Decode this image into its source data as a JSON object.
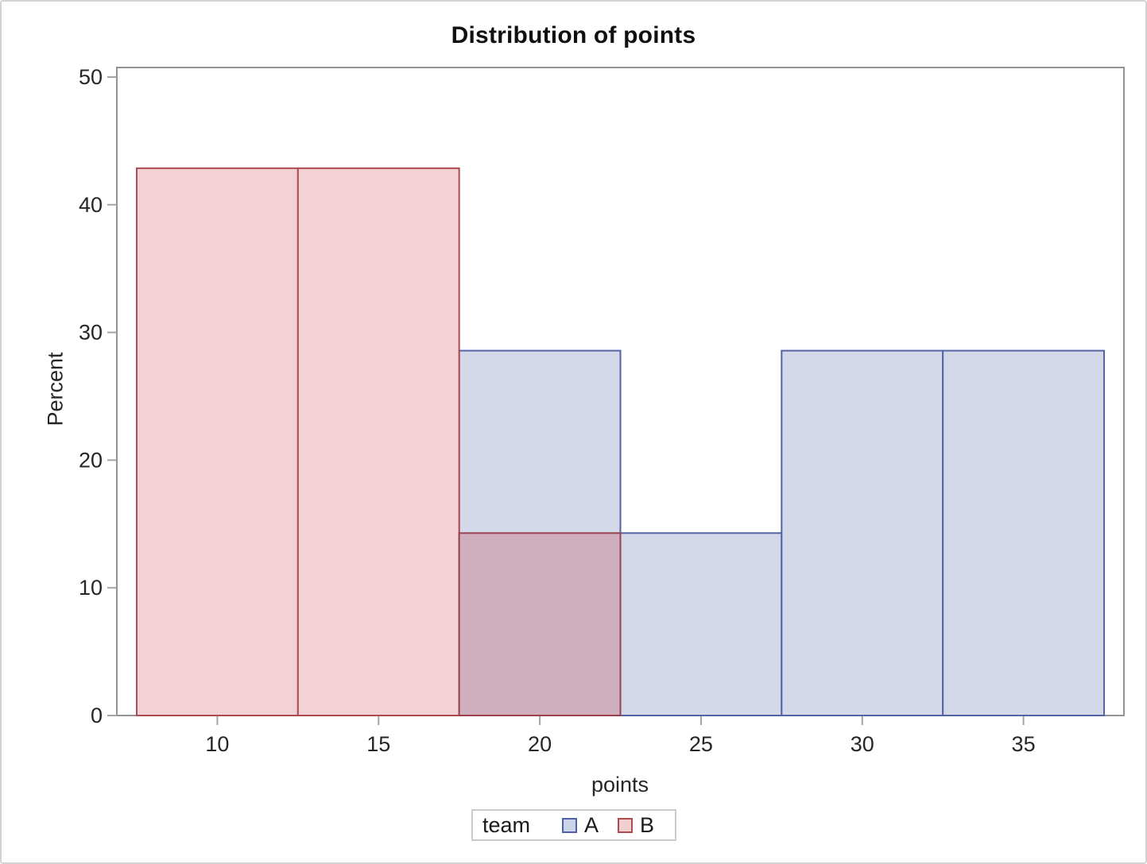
{
  "chart_data": {
    "type": "bar",
    "subtype": "overlaid_histogram",
    "title": "Distribution of points",
    "xlabel": "points",
    "ylabel": "Percent",
    "xticks": [
      10,
      15,
      20,
      25,
      30,
      35
    ],
    "yticks": [
      0,
      10,
      20,
      30,
      40,
      50
    ],
    "xlim": [
      6.88,
      38.12
    ],
    "ylim": [
      0,
      50.7
    ],
    "bin_width": 5,
    "grid": false,
    "series": [
      {
        "name": "A",
        "fill": "#d3d9e8",
        "stroke": "#5363a6",
        "bins": [
          {
            "x0": 17.5,
            "x1": 22.5,
            "percent": 28.571
          },
          {
            "x0": 22.5,
            "x1": 27.5,
            "percent": 14.286
          },
          {
            "x0": 27.5,
            "x1": 32.5,
            "percent": 28.571
          },
          {
            "x0": 32.5,
            "x1": 37.5,
            "percent": 28.571
          }
        ]
      },
      {
        "name": "B",
        "fill": "#f2d2d4",
        "stroke": "#ac4c51",
        "bins": [
          {
            "x0": 7.5,
            "x1": 12.5,
            "percent": 42.857
          },
          {
            "x0": 12.5,
            "x1": 17.5,
            "percent": 42.857
          }
        ]
      }
    ],
    "overlap_bin": {
      "series": "B",
      "x0": 17.5,
      "x1": 22.5,
      "percent": 14.286,
      "fill": "#cfafbe",
      "stroke": "#9a4150",
      "note": "red bin drawn over blue bin 17.5-22.5"
    },
    "colors": {
      "frame": "#949494",
      "tick": "#a3a3a3",
      "text": "#262626"
    },
    "legend": {
      "title": "team",
      "position": "bottom",
      "entries": [
        {
          "label": "A",
          "fill": "#ccd4e9",
          "stroke": "#5061a7"
        },
        {
          "label": "B",
          "fill": "#f0cfd1",
          "stroke": "#af4b4f"
        }
      ]
    }
  }
}
